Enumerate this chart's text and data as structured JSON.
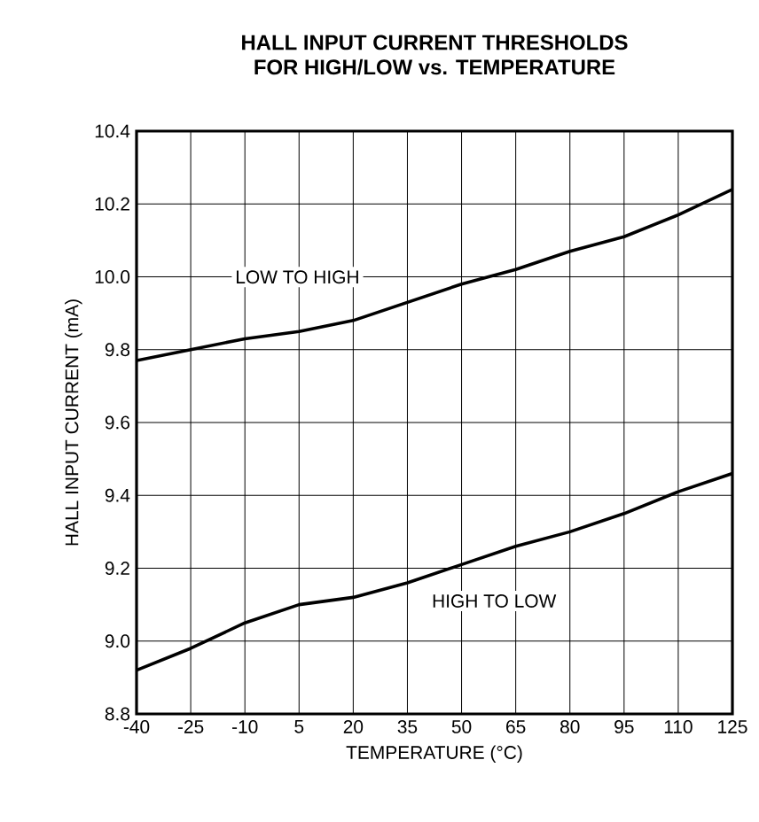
{
  "chart_data": {
    "type": "line",
    "title": "HALL INPUT CURRENT THRESHOLDS\nFOR HIGH/LOW vs. TEMPERATURE",
    "xlabel": "TEMPERATURE (°C)",
    "ylabel": "HALL INPUT CURRENT (mA)",
    "x": [
      -40,
      -25,
      -10,
      5,
      20,
      35,
      50,
      65,
      80,
      95,
      110,
      125
    ],
    "series": [
      {
        "name": "LOW TO HIGH",
        "color": "#000000",
        "values": [
          9.77,
          9.8,
          9.83,
          9.85,
          9.88,
          9.93,
          9.98,
          10.02,
          10.07,
          10.11,
          10.17,
          10.24
        ]
      },
      {
        "name": "HIGH TO LOW",
        "color": "#000000",
        "values": [
          8.92,
          8.98,
          9.05,
          9.1,
          9.12,
          9.16,
          9.21,
          9.26,
          9.3,
          9.35,
          9.41,
          9.46
        ]
      }
    ],
    "xlim": [
      -40,
      125
    ],
    "ylim": [
      8.8,
      10.4
    ],
    "xticks": [
      -40,
      -25,
      -10,
      5,
      20,
      35,
      50,
      65,
      80,
      95,
      110,
      125
    ],
    "yticks": [
      8.8,
      {
        "value": 9.0,
        "label": "9.0"
      },
      9.2,
      9.4,
      9.6,
      9.8,
      {
        "value": 10.0,
        "label": "10.0"
      },
      10.2,
      10.4
    ],
    "grid": true,
    "marker": "none",
    "line_style": "solid"
  }
}
